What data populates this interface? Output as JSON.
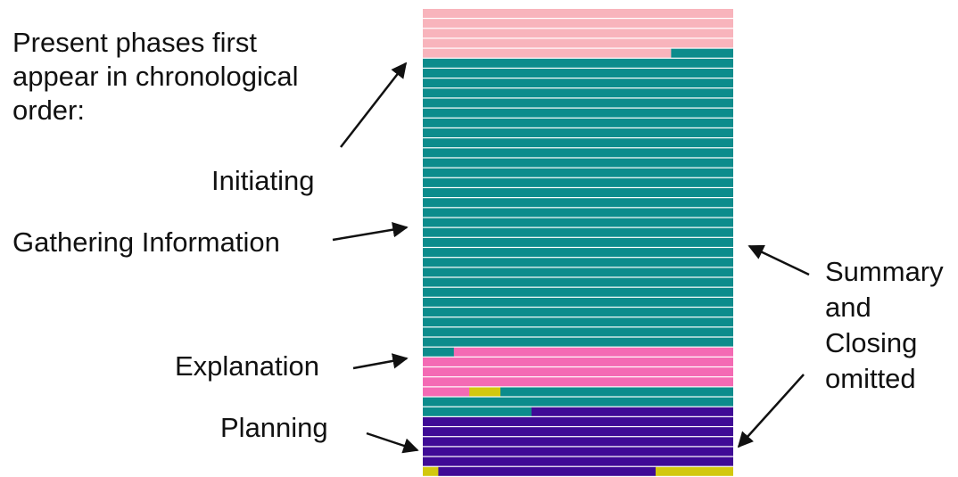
{
  "heading": {
    "lines": [
      "Present phases first",
      "appear in chronological",
      "order:"
    ]
  },
  "labels": {
    "initiating": "Initiating",
    "gathering": "Gathering Information",
    "explanation": "Explanation",
    "planning": "Planning"
  },
  "side_note": {
    "lines": [
      "Summary",
      "and",
      "Closing",
      "omitted"
    ]
  },
  "colors": {
    "initiating": "#f8b4bc",
    "gathering": "#0c8c8c",
    "explanation": "#f46ab4",
    "planning": "#3f0a96",
    "other": "#d2c80e",
    "row_separator": "#ffffff",
    "arrow": "#111111"
  },
  "rows": [
    [
      [
        "initiating",
        1.0
      ]
    ],
    [
      [
        "initiating",
        1.0
      ]
    ],
    [
      [
        "initiating",
        1.0
      ]
    ],
    [
      [
        "initiating",
        1.0
      ]
    ],
    [
      [
        "initiating",
        0.8
      ],
      [
        "gathering",
        0.2
      ]
    ],
    [
      [
        "gathering",
        1.0
      ]
    ],
    [
      [
        "gathering",
        1.0
      ]
    ],
    [
      [
        "gathering",
        1.0
      ]
    ],
    [
      [
        "gathering",
        1.0
      ]
    ],
    [
      [
        "gathering",
        1.0
      ]
    ],
    [
      [
        "gathering",
        1.0
      ]
    ],
    [
      [
        "gathering",
        1.0
      ]
    ],
    [
      [
        "gathering",
        1.0
      ]
    ],
    [
      [
        "gathering",
        1.0
      ]
    ],
    [
      [
        "gathering",
        1.0
      ]
    ],
    [
      [
        "gathering",
        1.0
      ]
    ],
    [
      [
        "gathering",
        1.0
      ]
    ],
    [
      [
        "gathering",
        1.0
      ]
    ],
    [
      [
        "gathering",
        1.0
      ]
    ],
    [
      [
        "gathering",
        1.0
      ]
    ],
    [
      [
        "gathering",
        1.0
      ]
    ],
    [
      [
        "gathering",
        1.0
      ]
    ],
    [
      [
        "gathering",
        1.0
      ]
    ],
    [
      [
        "gathering",
        1.0
      ]
    ],
    [
      [
        "gathering",
        1.0
      ]
    ],
    [
      [
        "gathering",
        1.0
      ]
    ],
    [
      [
        "gathering",
        1.0
      ]
    ],
    [
      [
        "gathering",
        1.0
      ]
    ],
    [
      [
        "gathering",
        1.0
      ]
    ],
    [
      [
        "gathering",
        1.0
      ]
    ],
    [
      [
        "gathering",
        1.0
      ]
    ],
    [
      [
        "gathering",
        1.0
      ]
    ],
    [
      [
        "gathering",
        1.0
      ]
    ],
    [
      [
        "gathering",
        1.0
      ]
    ],
    [
      [
        "gathering",
        0.1
      ],
      [
        "explanation",
        0.9
      ]
    ],
    [
      [
        "explanation",
        1.0
      ]
    ],
    [
      [
        "explanation",
        1.0
      ]
    ],
    [
      [
        "explanation",
        1.0
      ]
    ],
    [
      [
        "explanation",
        0.15
      ],
      [
        "other",
        0.1
      ],
      [
        "gathering",
        0.75
      ]
    ],
    [
      [
        "gathering",
        1.0
      ]
    ],
    [
      [
        "gathering",
        0.35
      ],
      [
        "planning",
        0.65
      ]
    ],
    [
      [
        "planning",
        1.0
      ]
    ],
    [
      [
        "planning",
        1.0
      ]
    ],
    [
      [
        "planning",
        1.0
      ]
    ],
    [
      [
        "planning",
        1.0
      ]
    ],
    [
      [
        "planning",
        1.0
      ]
    ],
    [
      [
        "other",
        0.05
      ],
      [
        "planning",
        0.7
      ],
      [
        "other",
        0.25
      ]
    ]
  ]
}
